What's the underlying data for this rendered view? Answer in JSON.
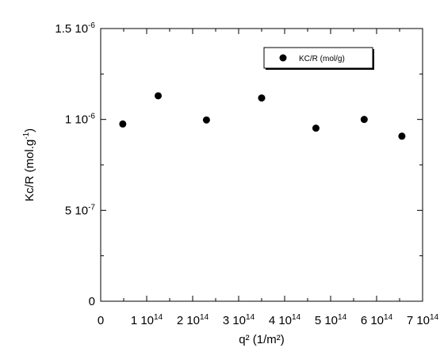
{
  "chart_data": {
    "type": "scatter",
    "title": "",
    "xlabel": "q² (1/m²)",
    "ylabel": "Kc/R (mol.g",
    "ylabel_sup": "-1",
    "ylabel_tail": ")",
    "xlim": [
      0,
      700000000000000.0
    ],
    "ylim": [
      0,
      1.5e-06
    ],
    "x_ticks": [
      {
        "value": 0,
        "mantissa": "0",
        "exp": ""
      },
      {
        "value": 100000000000000.0,
        "mantissa": "1 10",
        "exp": "14"
      },
      {
        "value": 200000000000000.0,
        "mantissa": "2 10",
        "exp": "14"
      },
      {
        "value": 300000000000000.0,
        "mantissa": "3 10",
        "exp": "14"
      },
      {
        "value": 400000000000000.0,
        "mantissa": "4 10",
        "exp": "14"
      },
      {
        "value": 500000000000000.0,
        "mantissa": "5 10",
        "exp": "14"
      },
      {
        "value": 600000000000000.0,
        "mantissa": "6 10",
        "exp": "14"
      },
      {
        "value": 700000000000000.0,
        "mantissa": "7 10",
        "exp": "14"
      }
    ],
    "y_ticks": [
      {
        "value": 0,
        "mantissa": "0",
        "exp": ""
      },
      {
        "value": 5e-07,
        "mantissa": "5 10",
        "exp": "-7"
      },
      {
        "value": 1e-06,
        "mantissa": "1 10",
        "exp": "-6"
      },
      {
        "value": 1.5e-06,
        "mantissa": "1.5 10",
        "exp": "-6"
      }
    ],
    "grid": false,
    "legend": {
      "position": "top-right"
    },
    "series": [
      {
        "name": "KC/R (mol/g)",
        "color": "#000000",
        "marker": "circle",
        "x": [
          48000000000000.0,
          125000000000000.0,
          230000000000000.0,
          350000000000000.0,
          468000000000000.0,
          573000000000000.0,
          655000000000000.0
        ],
        "y": [
          9.75e-07,
          1.13e-06,
          9.97e-07,
          1.118e-06,
          9.52e-07,
          1e-06,
          9.08e-07
        ]
      }
    ]
  }
}
